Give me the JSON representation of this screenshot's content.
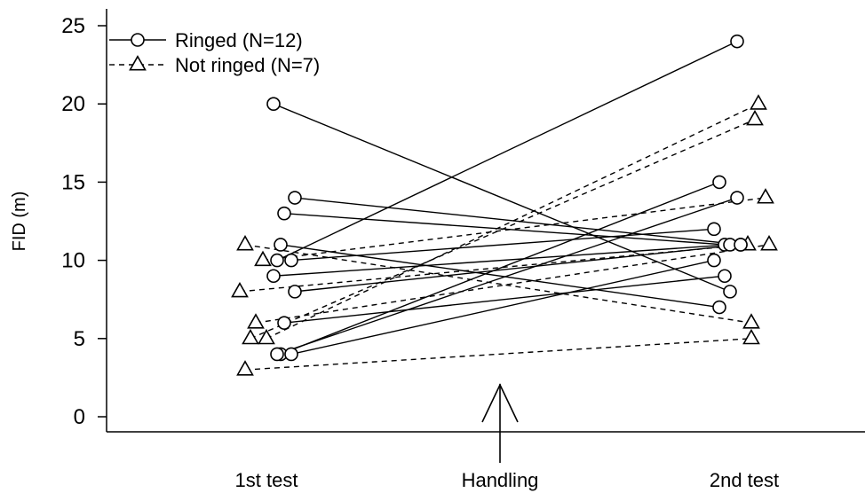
{
  "chart_data": {
    "type": "line",
    "title": "",
    "xlabel": "",
    "ylabel": "FID (m)",
    "ylim": [
      0,
      25
    ],
    "yticks": [
      0,
      5,
      10,
      15,
      20,
      25
    ],
    "categories": [
      "1st test",
      "2nd test"
    ],
    "annotation": {
      "label": "Handling",
      "marker": "arrow"
    },
    "grid": false,
    "legend_position": "top-left",
    "colors": {
      "line": "#000000",
      "background": "#ffffff"
    },
    "series": [
      {
        "name": "Not ringed (N=7)",
        "line_style": "dashed",
        "marker": "triangle",
        "pairs": [
          [
            11,
            6
          ],
          [
            10,
            14
          ],
          [
            8,
            11
          ],
          [
            6,
            11
          ],
          [
            5,
            20
          ],
          [
            5,
            19
          ],
          [
            3,
            5
          ]
        ]
      },
      {
        "name": "Ringed (N=12)",
        "line_style": "solid",
        "marker": "circle",
        "pairs": [
          [
            20,
            8
          ],
          [
            14,
            11
          ],
          [
            13,
            11
          ],
          [
            11,
            7
          ],
          [
            10,
            24
          ],
          [
            10,
            12
          ],
          [
            9,
            11
          ],
          [
            8,
            11
          ],
          [
            6,
            9
          ],
          [
            4,
            15
          ],
          [
            4,
            14
          ],
          [
            4,
            10
          ]
        ]
      }
    ]
  }
}
